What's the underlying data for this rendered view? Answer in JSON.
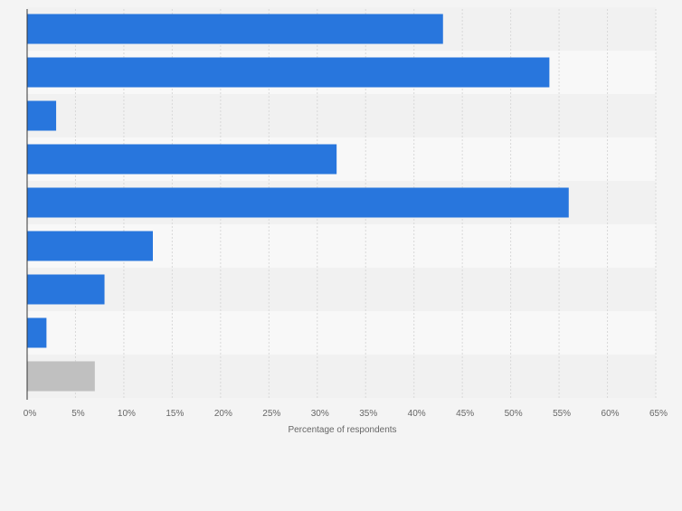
{
  "chart_data": {
    "type": "bar",
    "orientation": "horizontal",
    "title": "",
    "xlabel": "Percentage of respondents",
    "ylabel": "",
    "xlim": [
      0,
      65
    ],
    "x_ticks": [
      0,
      5,
      10,
      15,
      20,
      25,
      30,
      35,
      40,
      45,
      50,
      55,
      60,
      65
    ],
    "tick_suffix": "%",
    "grid": true,
    "legend": "none",
    "categories": [
      "",
      "",
      "",
      "",
      "",
      "",
      "",
      "",
      ""
    ],
    "values": [
      43,
      54,
      3,
      32,
      56,
      13,
      8,
      2,
      7
    ],
    "colors": {
      "bar": "#2876dd",
      "bar_last": "#c0c0c0",
      "band_dark": "#f1f1f1",
      "band_light": "#f8f8f8",
      "grid": "#d9d9d9",
      "axis": "#333333",
      "tick_text": "#666666"
    }
  }
}
